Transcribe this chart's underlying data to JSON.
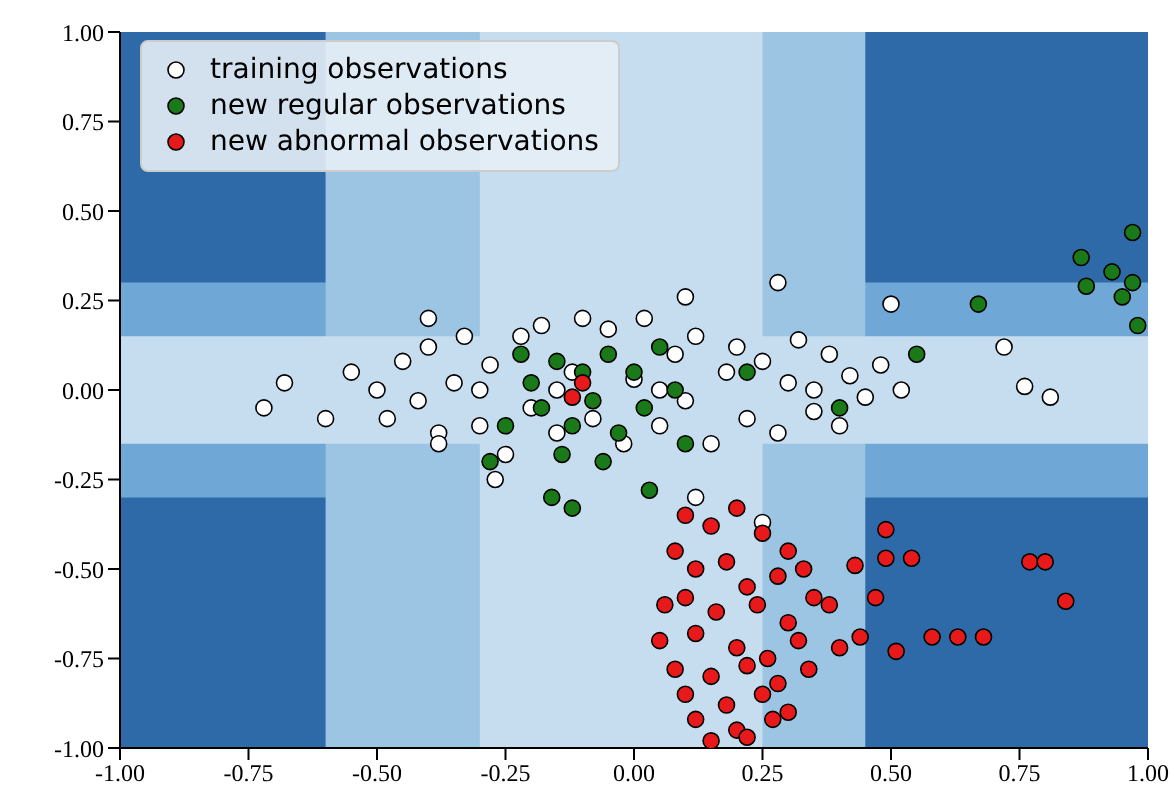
{
  "chart_data": {
    "type": "scatter",
    "xlim": [
      -1,
      1
    ],
    "ylim": [
      -1,
      1
    ],
    "xticks": [
      {
        "value": -1,
        "label": "-1.00"
      },
      {
        "value": -0.75,
        "label": "-0.75"
      },
      {
        "value": -0.5,
        "label": "-0.50"
      },
      {
        "value": -0.25,
        "label": "-0.25"
      },
      {
        "value": 0,
        "label": "0.00"
      },
      {
        "value": 0.25,
        "label": "0.25"
      },
      {
        "value": 0.5,
        "label": "0.50"
      },
      {
        "value": 0.75,
        "label": "0.75"
      },
      {
        "value": 1,
        "label": "1.00"
      }
    ],
    "yticks": [
      {
        "value": -1,
        "label": "-1.00"
      },
      {
        "value": -0.75,
        "label": "-0.75"
      },
      {
        "value": -0.5,
        "label": "-0.50"
      },
      {
        "value": -0.25,
        "label": "-0.25"
      },
      {
        "value": 0,
        "label": "0.00"
      },
      {
        "value": 0.25,
        "label": "0.25"
      },
      {
        "value": 0.5,
        "label": "0.50"
      },
      {
        "value": 0.75,
        "label": "0.75"
      },
      {
        "value": 1,
        "label": "1.00"
      }
    ],
    "grid": false,
    "legend": "top left",
    "marker": "circle",
    "bands": [
      {
        "axis": "y",
        "from": -1,
        "to": 1,
        "color": "#2f6aa8"
      },
      {
        "axis": "y",
        "from": -0.3,
        "to": 0.3,
        "color": "#6fa8d6"
      },
      {
        "axis": "x",
        "from": -0.6,
        "to": 0.45,
        "color": "#9cc5e4"
      },
      {
        "axis": "y",
        "from": -0.15,
        "to": 0.15,
        "color": "#c6dcef"
      },
      {
        "axis": "x",
        "from": -0.3,
        "to": 0.25,
        "color": "#c6dcef"
      }
    ],
    "series": [
      {
        "name": "training observations",
        "color": "#ffffff",
        "x": [
          -0.55,
          -0.5,
          -0.48,
          -0.45,
          -0.42,
          -0.4,
          -0.38,
          -0.35,
          -0.33,
          -0.3,
          -0.28,
          -0.25,
          -0.22,
          -0.2,
          -0.18,
          -0.15,
          -0.12,
          -0.1,
          -0.08,
          -0.05,
          -0.02,
          0.0,
          0.02,
          0.05,
          0.08,
          0.1,
          0.12,
          0.15,
          0.18,
          0.2,
          0.22,
          0.25,
          0.28,
          0.3,
          0.32,
          0.35,
          0.38,
          0.4,
          0.42,
          0.45,
          0.48,
          0.52,
          -0.68,
          -0.72,
          -0.6,
          -0.4,
          0.28,
          0.1,
          0.5,
          0.12,
          -0.27,
          0.72,
          0.76,
          0.81,
          0.25,
          -0.38,
          0.05,
          -0.15,
          0.35,
          -0.3
        ],
        "values": [
          0.05,
          0.0,
          -0.08,
          0.08,
          -0.03,
          0.12,
          -0.12,
          0.02,
          0.15,
          -0.1,
          0.07,
          -0.18,
          0.15,
          -0.05,
          0.18,
          -0.12,
          0.05,
          0.2,
          -0.08,
          0.17,
          -0.15,
          0.03,
          0.2,
          -0.1,
          0.1,
          -0.03,
          0.15,
          -0.15,
          0.05,
          0.12,
          -0.08,
          0.08,
          -0.12,
          0.02,
          0.14,
          -0.06,
          0.1,
          -0.1,
          0.04,
          -0.02,
          0.07,
          0.0,
          0.02,
          -0.05,
          -0.08,
          0.2,
          0.3,
          0.26,
          0.24,
          -0.3,
          -0.25,
          0.12,
          0.01,
          -0.02,
          -0.37,
          -0.15,
          0.0,
          0.0,
          0.0,
          0.0
        ]
      },
      {
        "name": "new regular observations",
        "color": "#1a7a1a",
        "x": [
          -0.2,
          -0.18,
          -0.15,
          -0.12,
          -0.1,
          -0.08,
          -0.05,
          -0.03,
          0.0,
          0.02,
          0.05,
          0.08,
          -0.25,
          -0.22,
          -0.14,
          -0.06,
          0.1,
          -0.16,
          -0.12,
          0.03,
          -0.28,
          0.22,
          0.4,
          0.55,
          0.87,
          0.88,
          0.93,
          0.95,
          0.97,
          0.98,
          0.97,
          0.67
        ],
        "values": [
          0.02,
          -0.05,
          0.08,
          -0.1,
          0.05,
          -0.03,
          0.1,
          -0.12,
          0.05,
          -0.05,
          0.12,
          0.0,
          -0.1,
          0.1,
          -0.18,
          -0.2,
          -0.15,
          -0.3,
          -0.33,
          -0.28,
          -0.2,
          0.05,
          -0.05,
          0.1,
          0.37,
          0.29,
          0.33,
          0.26,
          0.3,
          0.18,
          0.44,
          0.24
        ]
      },
      {
        "name": "new abnormal observations",
        "color": "#e8191a",
        "x": [
          -0.12,
          -0.1,
          0.1,
          0.15,
          0.2,
          0.25,
          0.3,
          0.08,
          0.12,
          0.18,
          0.22,
          0.28,
          0.33,
          0.06,
          0.1,
          0.16,
          0.24,
          0.3,
          0.35,
          0.05,
          0.12,
          0.2,
          0.26,
          0.32,
          0.08,
          0.15,
          0.22,
          0.28,
          0.34,
          0.1,
          0.18,
          0.25,
          0.3,
          0.12,
          0.2,
          0.27,
          0.15,
          0.22,
          0.49,
          0.49,
          0.54,
          0.43,
          0.47,
          0.44,
          0.51,
          0.58,
          0.63,
          0.68,
          0.77,
          0.8,
          0.84,
          0.38,
          0.4
        ],
        "values": [
          -0.02,
          0.02,
          -0.35,
          -0.38,
          -0.33,
          -0.4,
          -0.45,
          -0.45,
          -0.5,
          -0.48,
          -0.55,
          -0.52,
          -0.5,
          -0.6,
          -0.58,
          -0.62,
          -0.6,
          -0.65,
          -0.58,
          -0.7,
          -0.68,
          -0.72,
          -0.75,
          -0.7,
          -0.78,
          -0.8,
          -0.77,
          -0.82,
          -0.78,
          -0.85,
          -0.88,
          -0.85,
          -0.9,
          -0.92,
          -0.95,
          -0.92,
          -0.98,
          -0.97,
          -0.39,
          -0.47,
          -0.47,
          -0.49,
          -0.58,
          -0.69,
          -0.73,
          -0.69,
          -0.69,
          -0.69,
          -0.48,
          -0.48,
          -0.59,
          -0.6,
          -0.72
        ]
      }
    ]
  }
}
